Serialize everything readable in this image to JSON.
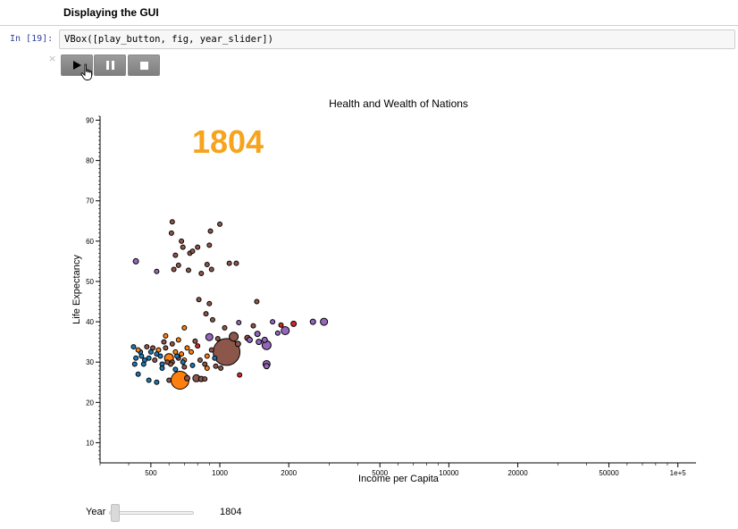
{
  "header": {
    "title": "Displaying the GUI"
  },
  "cell": {
    "prompt": "In [19]:",
    "code": "VBox([play_button, fig, year_slider])",
    "close_glyph": "×"
  },
  "controls": {
    "play_icon": "play-icon",
    "pause_icon": "pause-icon",
    "stop_icon": "stop-icon"
  },
  "chart_data": {
    "type": "scatter",
    "title": "Health and Wealth of Nations",
    "year_label": "1804",
    "year_label_color": "#f7a31c",
    "xlabel": "Income per Capita",
    "ylabel": "Life Expectancy",
    "xscale": "log",
    "xlim": [
      300,
      120000
    ],
    "ylim": [
      5,
      91
    ],
    "xticks": [
      {
        "value": 500,
        "label": "500"
      },
      {
        "value": 1000,
        "label": "1000"
      },
      {
        "value": 2000,
        "label": "2000"
      },
      {
        "value": 5000,
        "label": "5000"
      },
      {
        "value": 10000,
        "label": "10000"
      },
      {
        "value": 20000,
        "label": "20000"
      },
      {
        "value": 50000,
        "label": "50000"
      },
      {
        "value": 100000,
        "label": "1e+5"
      }
    ],
    "yticks": [
      10,
      20,
      30,
      40,
      50,
      60,
      70,
      80,
      90
    ],
    "points": [
      {
        "x": 430,
        "y": 55,
        "c": "#9467bd",
        "s": 3
      },
      {
        "x": 530,
        "y": 52.5,
        "c": "#9467bd",
        "s": 2.5
      },
      {
        "x": 615,
        "y": 62,
        "c": "#8c564b",
        "s": 2.5
      },
      {
        "x": 620,
        "y": 64.8,
        "c": "#8c564b",
        "s": 2.5
      },
      {
        "x": 630,
        "y": 53,
        "c": "#8c564b",
        "s": 2.5
      },
      {
        "x": 640,
        "y": 56.5,
        "c": "#8c564b",
        "s": 2.5
      },
      {
        "x": 660,
        "y": 54,
        "c": "#8c564b",
        "s": 2.5
      },
      {
        "x": 680,
        "y": 60,
        "c": "#8c564b",
        "s": 2.5
      },
      {
        "x": 690,
        "y": 58.5,
        "c": "#8c564b",
        "s": 2.5
      },
      {
        "x": 730,
        "y": 52.8,
        "c": "#8c564b",
        "s": 2.5
      },
      {
        "x": 740,
        "y": 57,
        "c": "#8c564b",
        "s": 2.5
      },
      {
        "x": 760,
        "y": 57.5,
        "c": "#8c564b",
        "s": 2.5
      },
      {
        "x": 800,
        "y": 58.5,
        "c": "#8c564b",
        "s": 2.5
      },
      {
        "x": 830,
        "y": 52,
        "c": "#8c564b",
        "s": 2.5
      },
      {
        "x": 880,
        "y": 54.2,
        "c": "#8c564b",
        "s": 2.5
      },
      {
        "x": 900,
        "y": 59,
        "c": "#8c564b",
        "s": 2.5
      },
      {
        "x": 910,
        "y": 62.5,
        "c": "#8c564b",
        "s": 2.5
      },
      {
        "x": 920,
        "y": 53,
        "c": "#8c564b",
        "s": 2.5
      },
      {
        "x": 1000,
        "y": 64.2,
        "c": "#8c564b",
        "s": 2.5
      },
      {
        "x": 1100,
        "y": 54.5,
        "c": "#8c564b",
        "s": 2.5
      },
      {
        "x": 1180,
        "y": 54.5,
        "c": "#8c564b",
        "s": 2.5
      },
      {
        "x": 1450,
        "y": 45,
        "c": "#8c564b",
        "s": 2.5
      },
      {
        "x": 810,
        "y": 45.5,
        "c": "#8c564b",
        "s": 2.5
      },
      {
        "x": 900,
        "y": 44.5,
        "c": "#8c564b",
        "s": 2.5
      },
      {
        "x": 870,
        "y": 42,
        "c": "#8c564b",
        "s": 2.5
      },
      {
        "x": 930,
        "y": 40.5,
        "c": "#8c564b",
        "s": 2.5
      },
      {
        "x": 700,
        "y": 38.5,
        "c": "#ff7f0e",
        "s": 2.5
      },
      {
        "x": 1050,
        "y": 38.5,
        "c": "#8c564b",
        "s": 2.5
      },
      {
        "x": 1400,
        "y": 39,
        "c": "#8c564b",
        "s": 2.5
      },
      {
        "x": 1210,
        "y": 39.8,
        "c": "#9467bd",
        "s": 2.5
      },
      {
        "x": 1700,
        "y": 40,
        "c": "#9467bd",
        "s": 2.5
      },
      {
        "x": 1850,
        "y": 39.2,
        "c": "#d62728",
        "s": 2.5
      },
      {
        "x": 2100,
        "y": 39.5,
        "c": "#d62728",
        "s": 3
      },
      {
        "x": 2550,
        "y": 40,
        "c": "#9467bd",
        "s": 3
      },
      {
        "x": 2850,
        "y": 40,
        "c": "#9467bd",
        "s": 4
      },
      {
        "x": 1930,
        "y": 37.8,
        "c": "#9467bd",
        "s": 4.5
      },
      {
        "x": 1790,
        "y": 37.2,
        "c": "#9467bd",
        "s": 2.5
      },
      {
        "x": 1460,
        "y": 37,
        "c": "#9467bd",
        "s": 3
      },
      {
        "x": 1320,
        "y": 36,
        "c": "#8c564b",
        "s": 3
      },
      {
        "x": 1350,
        "y": 35.5,
        "c": "#9467bd",
        "s": 3
      },
      {
        "x": 1480,
        "y": 35,
        "c": "#9467bd",
        "s": 3
      },
      {
        "x": 1570,
        "y": 35.5,
        "c": "#9467bd",
        "s": 3
      },
      {
        "x": 1600,
        "y": 34.2,
        "c": "#9467bd",
        "s": 5
      },
      {
        "x": 1600,
        "y": 29.5,
        "c": "#9467bd",
        "s": 4
      },
      {
        "x": 1600,
        "y": 29,
        "c": "#9467bd",
        "s": 3
      },
      {
        "x": 1220,
        "y": 26.8,
        "c": "#d62728",
        "s": 2.5
      },
      {
        "x": 1150,
        "y": 36.3,
        "c": "#8c564b",
        "s": 5
      },
      {
        "x": 1200,
        "y": 34.5,
        "c": "#8c564b",
        "s": 3
      },
      {
        "x": 1070,
        "y": 32.5,
        "c": "#8c564b",
        "s": 15
      },
      {
        "x": 900,
        "y": 36.2,
        "c": "#9467bd",
        "s": 4
      },
      {
        "x": 980,
        "y": 35.8,
        "c": "#8c564b",
        "s": 2.5
      },
      {
        "x": 920,
        "y": 33,
        "c": "#8c564b",
        "s": 2.5
      },
      {
        "x": 880,
        "y": 31.5,
        "c": "#ff7f0e",
        "s": 2.5
      },
      {
        "x": 860,
        "y": 29.5,
        "c": "#8c564b",
        "s": 2.5
      },
      {
        "x": 880,
        "y": 28.5,
        "c": "#ff7f0e",
        "s": 2.5
      },
      {
        "x": 820,
        "y": 30.5,
        "c": "#8c564b",
        "s": 2.5
      },
      {
        "x": 800,
        "y": 34,
        "c": "#d62728",
        "s": 2.5
      },
      {
        "x": 780,
        "y": 35.2,
        "c": "#8c564b",
        "s": 2.5
      },
      {
        "x": 750,
        "y": 32.5,
        "c": "#ff7f0e",
        "s": 2.5
      },
      {
        "x": 720,
        "y": 33.5,
        "c": "#ff7f0e",
        "s": 2.5
      },
      {
        "x": 700,
        "y": 30.5,
        "c": "#ff7f0e",
        "s": 2.5
      },
      {
        "x": 690,
        "y": 30,
        "c": "#1f77b4",
        "s": 2.5
      },
      {
        "x": 680,
        "y": 32,
        "c": "#ff7f0e",
        "s": 2.5
      },
      {
        "x": 660,
        "y": 31,
        "c": "#8c564b",
        "s": 2.5
      },
      {
        "x": 650,
        "y": 31.5,
        "c": "#1f77b4",
        "s": 2.5
      },
      {
        "x": 640,
        "y": 32.5,
        "c": "#ff7f0e",
        "s": 2.5
      },
      {
        "x": 620,
        "y": 30,
        "c": "#8c564b",
        "s": 2.5
      },
      {
        "x": 610,
        "y": 29.5,
        "c": "#8c564b",
        "s": 2.5
      },
      {
        "x": 600,
        "y": 31,
        "c": "#ff7f0e",
        "s": 5
      },
      {
        "x": 590,
        "y": 30,
        "c": "#8c564b",
        "s": 2.5
      },
      {
        "x": 580,
        "y": 36.5,
        "c": "#ff7f0e",
        "s": 2.5
      },
      {
        "x": 580,
        "y": 33.5,
        "c": "#8c564b",
        "s": 2.5
      },
      {
        "x": 560,
        "y": 29.5,
        "c": "#1f77b4",
        "s": 2.5
      },
      {
        "x": 560,
        "y": 28.5,
        "c": "#1f77b4",
        "s": 2.5
      },
      {
        "x": 550,
        "y": 31.5,
        "c": "#1f77b4",
        "s": 2.5
      },
      {
        "x": 540,
        "y": 33,
        "c": "#ff7f0e",
        "s": 2.5
      },
      {
        "x": 530,
        "y": 32,
        "c": "#1f77b4",
        "s": 2.5
      },
      {
        "x": 520,
        "y": 30.5,
        "c": "#8c564b",
        "s": 2.5
      },
      {
        "x": 510,
        "y": 33.5,
        "c": "#8c564b",
        "s": 2.5
      },
      {
        "x": 500,
        "y": 32.5,
        "c": "#1f77b4",
        "s": 2.5
      },
      {
        "x": 490,
        "y": 31,
        "c": "#1f77b4",
        "s": 2.5
      },
      {
        "x": 480,
        "y": 33.8,
        "c": "#8c564b",
        "s": 2.5
      },
      {
        "x": 470,
        "y": 30.5,
        "c": "#1f77b4",
        "s": 2.5
      },
      {
        "x": 465,
        "y": 29.5,
        "c": "#1f77b4",
        "s": 2.5
      },
      {
        "x": 455,
        "y": 31.5,
        "c": "#1f77b4",
        "s": 2.5
      },
      {
        "x": 450,
        "y": 32.5,
        "c": "#1f77b4",
        "s": 2.5
      },
      {
        "x": 440,
        "y": 33,
        "c": "#ff7f0e",
        "s": 2.5
      },
      {
        "x": 430,
        "y": 31,
        "c": "#1f77b4",
        "s": 2.5
      },
      {
        "x": 425,
        "y": 29.5,
        "c": "#1f77b4",
        "s": 2.5
      },
      {
        "x": 420,
        "y": 33.8,
        "c": "#1f77b4",
        "s": 2.5
      },
      {
        "x": 440,
        "y": 27,
        "c": "#1f77b4",
        "s": 2.5
      },
      {
        "x": 490,
        "y": 25.5,
        "c": "#1f77b4",
        "s": 2.5
      },
      {
        "x": 530,
        "y": 25,
        "c": "#1f77b4",
        "s": 2.5
      },
      {
        "x": 600,
        "y": 25.5,
        "c": "#8c564b",
        "s": 2.5
      },
      {
        "x": 670,
        "y": 25.5,
        "c": "#ff7f0e",
        "s": 10
      },
      {
        "x": 720,
        "y": 26,
        "c": "#8c564b",
        "s": 3
      },
      {
        "x": 790,
        "y": 26,
        "c": "#8c564b",
        "s": 4
      },
      {
        "x": 830,
        "y": 25.8,
        "c": "#8c564b",
        "s": 3
      },
      {
        "x": 860,
        "y": 25.8,
        "c": "#8c564b",
        "s": 2.5
      },
      {
        "x": 960,
        "y": 29,
        "c": "#8c564b",
        "s": 2.5
      },
      {
        "x": 950,
        "y": 31,
        "c": "#1f77b4",
        "s": 2.5
      },
      {
        "x": 1010,
        "y": 28.5,
        "c": "#8c564b",
        "s": 2.5
      },
      {
        "x": 640,
        "y": 28.2,
        "c": "#1f77b4",
        "s": 2.5
      },
      {
        "x": 700,
        "y": 28.8,
        "c": "#8c564b",
        "s": 2.5
      },
      {
        "x": 760,
        "y": 29.2,
        "c": "#1f77b4",
        "s": 2.5
      },
      {
        "x": 570,
        "y": 35,
        "c": "#8c564b",
        "s": 2.5
      },
      {
        "x": 620,
        "y": 34.5,
        "c": "#8c564b",
        "s": 2.5
      },
      {
        "x": 660,
        "y": 35.5,
        "c": "#ff7f0e",
        "s": 2.5
      }
    ]
  },
  "year_slider": {
    "label": "Year",
    "value": "1804",
    "min": 1800,
    "max": 2008,
    "position": 0.02
  }
}
